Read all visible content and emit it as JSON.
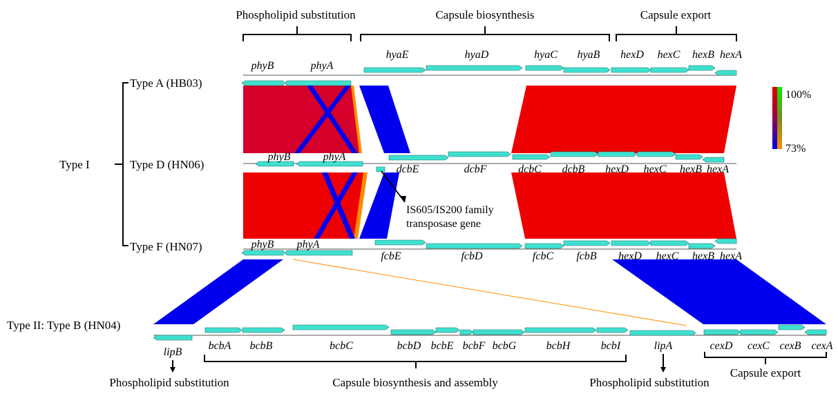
{
  "diagram": {
    "top_categories": [
      "Phospholipid substitution",
      "Capsule biosynthesis",
      "Capsule export"
    ],
    "bottom_categories": [
      "Phospholipid substitution",
      "Capsule biosynthesis and assembly",
      "Phospholipid substitution",
      "Capsule export"
    ],
    "type_i_label": "Type I",
    "genomes": [
      {
        "label": "Type A (HB03)",
        "genes": [
          "phyB",
          "phyA",
          "hyaE",
          "hyaD",
          "hyaC",
          "hyaB",
          "hexD",
          "hexC",
          "hexB",
          "hexA"
        ]
      },
      {
        "label": "Type D (HN06)",
        "genes": [
          "phyB",
          "phyA",
          "dcbE",
          "dcbF",
          "dcbC",
          "dcbB",
          "hexD",
          "hexC",
          "hexB",
          "hexA"
        ]
      },
      {
        "label": "Type F (HN07)",
        "genes": [
          "phyB",
          "phyA",
          "fcbE",
          "fcbD",
          "fcbC",
          "fcbB",
          "hexD",
          "hexC",
          "hexB",
          "hexA"
        ]
      },
      {
        "label": "Type II: Type B (HN04)",
        "genes": [
          "lipB",
          "bcbA",
          "bcbB",
          "bcbC",
          "bcbD",
          "bcbE",
          "bcbF",
          "bcbG",
          "bcbH",
          "bcbI",
          "lipA",
          "cexD",
          "cexC",
          "cexB",
          "cexA"
        ]
      }
    ],
    "annotation": {
      "line1": "IS605/IS200 family",
      "line2": "transposase gene"
    },
    "legend": {
      "max_label": "100%",
      "min_label": "73%"
    },
    "colors": {
      "gene": "#40E0D0",
      "high_identity": "#EE0000",
      "mid_identity": "#D4002A",
      "low_identity": "#0000EE",
      "weak_link": "#FF8C00",
      "legend_green": "#00EE00"
    }
  }
}
